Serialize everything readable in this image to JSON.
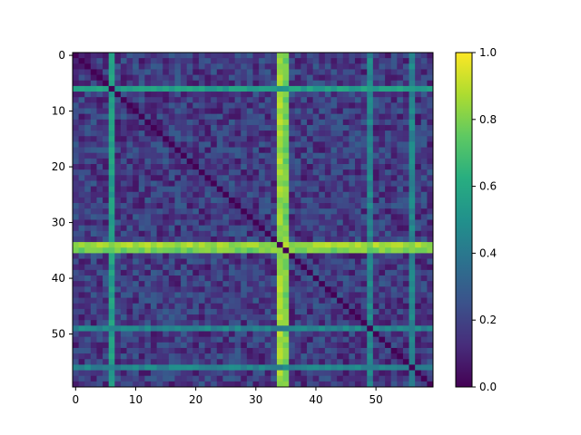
{
  "chart_data": {
    "type": "heatmap",
    "title": "",
    "xlabel": "",
    "ylabel": "",
    "n": 60,
    "x_ticks": [
      0,
      10,
      20,
      30,
      40,
      50
    ],
    "y_ticks": [
      0,
      10,
      20,
      30,
      40,
      50
    ],
    "colormap": "viridis",
    "colorbar": {
      "min": 0.0,
      "max": 1.0,
      "ticks": [
        "0.0",
        "0.2",
        "0.4",
        "0.6",
        "0.8",
        "1.0"
      ]
    },
    "grid": false,
    "symmetric": true,
    "diagonal_value": 0.0,
    "background_range": [
      0.05,
      0.3
    ],
    "highlight_rows": [
      {
        "index": 6,
        "value": 0.55
      },
      {
        "index": 34,
        "value": 0.85
      },
      {
        "index": 35,
        "value": 0.78
      },
      {
        "index": 49,
        "value": 0.45
      },
      {
        "index": 56,
        "value": 0.45
      }
    ]
  }
}
